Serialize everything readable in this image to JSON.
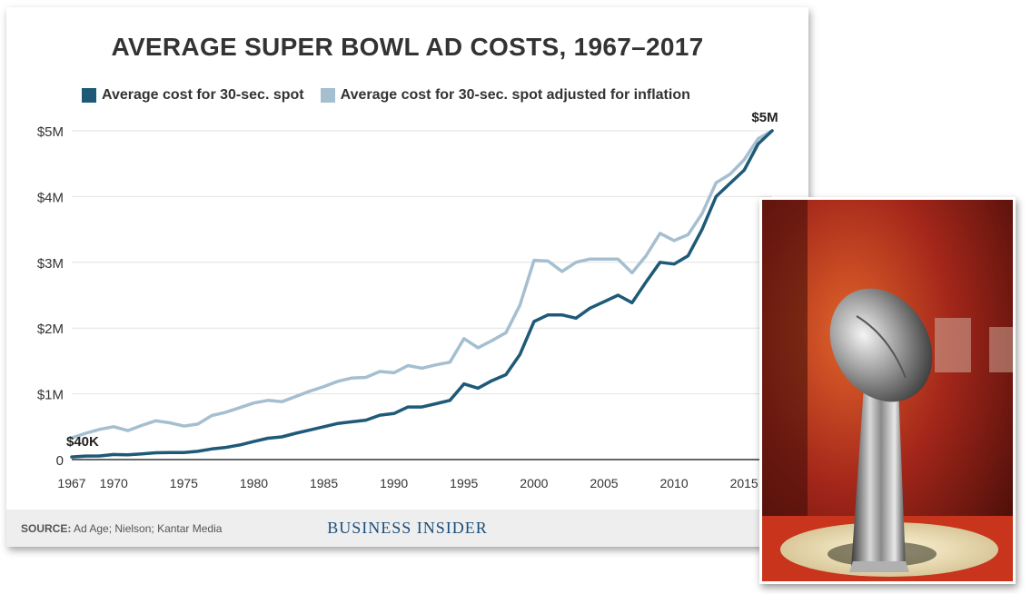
{
  "chart_data": {
    "type": "line",
    "title": "AVERAGE SUPER BOWL AD COSTS, 1967–2017",
    "series": [
      {
        "name": "Average cost for 30-sec. spot",
        "color": "#1e5a78",
        "values": [
          40000,
          54000,
          55000,
          78000,
          72000,
          86000,
          103000,
          107000,
          107500,
          125000,
          162000,
          185000,
          222000,
          275000,
          324000,
          345000,
          400000,
          450000,
          500000,
          550000,
          575000,
          600000,
          675000,
          700000,
          800000,
          800000,
          850000,
          900000,
          1150000,
          1085000,
          1200000,
          1291000,
          1600000,
          2100000,
          2200000,
          2200000,
          2150000,
          2302000,
          2400000,
          2500000,
          2385000,
          2700000,
          3000000,
          2974000,
          3100000,
          3500000,
          4000000,
          4200000,
          4400000,
          4800000,
          5000000
        ]
      },
      {
        "name": "Average cost for 30-sec. spot adjusted for inflation",
        "color": "#a5bfd0",
        "values": [
          330000,
          400000,
          460000,
          500000,
          440000,
          520000,
          590000,
          560000,
          510000,
          540000,
          670000,
          720000,
          790000,
          860000,
          900000,
          880000,
          960000,
          1040000,
          1110000,
          1190000,
          1240000,
          1250000,
          1340000,
          1320000,
          1430000,
          1390000,
          1440000,
          1480000,
          1840000,
          1700000,
          1810000,
          1930000,
          2350000,
          3030000,
          3020000,
          2860000,
          3000000,
          3050000,
          3050000,
          3050000,
          2840000,
          3100000,
          3440000,
          3330000,
          3420000,
          3740000,
          4210000,
          4340000,
          4560000,
          4880000,
          5000000
        ]
      }
    ],
    "x_start": 1967,
    "x_end": 2017,
    "xticks": [
      "1967",
      "1970",
      "1975",
      "1980",
      "1985",
      "1990",
      "1995",
      "2000",
      "2005",
      "2010",
      "2015"
    ],
    "xtick_values": [
      1967,
      1970,
      1975,
      1980,
      1985,
      1990,
      1995,
      2000,
      2005,
      2010,
      2015
    ],
    "yticks": [
      "0",
      "$1M",
      "$2M",
      "$3M",
      "$4M",
      "$5M"
    ],
    "ytick_values": [
      0,
      1000000,
      2000000,
      3000000,
      4000000,
      5000000
    ],
    "ylim": [
      0,
      5000000
    ],
    "annotations": [
      {
        "text": "$40K",
        "x": 1967,
        "y": 40000
      },
      {
        "text": "$5M",
        "x": 2017,
        "y": 5000000
      }
    ],
    "grid": "horizontal",
    "legend_placement": "top"
  },
  "footer": {
    "source_label": "SOURCE:",
    "source_text": " Ad Age; Nielson; Kantar Media",
    "brand": "BUSINESS INSIDER"
  },
  "photo": {
    "subject": "super-bowl-trophy-photo",
    "colors": {
      "background": "#8a1a10",
      "glow": "#d8501c",
      "trophy": "#b8b8b8",
      "base": "#e6e6e6"
    }
  }
}
